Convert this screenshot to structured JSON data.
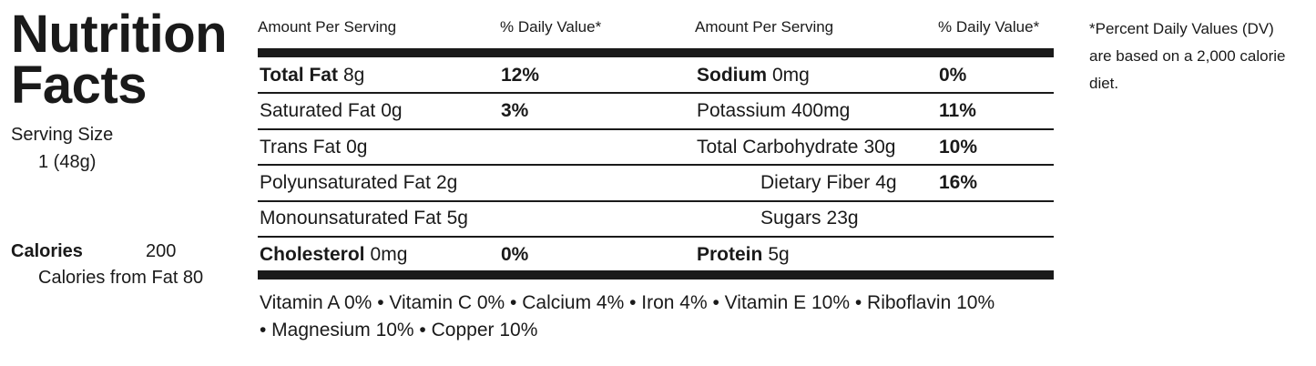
{
  "title": "Nutrition Facts",
  "serving": {
    "label": "Serving Size",
    "value": "1 (48g)"
  },
  "calories": {
    "label": "Calories",
    "value": "200",
    "from_fat": "Calories from Fat 80"
  },
  "table": {
    "headers": [
      "Amount Per Serving",
      "% Daily Value*",
      "Amount Per Serving",
      "% Daily Value*"
    ],
    "rows": [
      [
        {
          "name": "Total Fat",
          "amount": "8g",
          "dv": "12%"
        },
        {
          "name": "Sodium",
          "amount": "0mg",
          "dv": "0%"
        }
      ],
      [
        {
          "name": "Saturated Fat",
          "amount": "0g",
          "dv": "3%"
        },
        {
          "name": "Potassium",
          "amount": "400mg",
          "dv": "11%"
        }
      ],
      [
        {
          "name": "Trans Fat",
          "amount": "0g"
        },
        {
          "name": "Total Carbohydrate",
          "amount": "30g",
          "dv": "10%"
        }
      ],
      [
        {
          "name": "Polyunsaturated Fat",
          "amount": "2g"
        },
        {
          "name": "Dietary Fiber",
          "amount": "4g",
          "dv": "16%"
        }
      ],
      [
        {
          "name": "Monounsaturated Fat",
          "amount": "5g"
        },
        {
          "name": "Sugars",
          "amount": "23g"
        }
      ],
      [
        {
          "name": "Cholesterol",
          "amount": "0mg",
          "dv": "0%"
        },
        {
          "name": "Protein",
          "amount": "5g"
        }
      ]
    ]
  },
  "vitamins": [
    "Vitamin A 0% • Vitamin C 0% • Calcium 4% • Iron 4% • Vitamin E 10% • Riboflavin 10%",
    "• Magnesium 10% • Copper 10%"
  ],
  "footnote": [
    "*Percent Daily Values (DV)",
    "are based on a 2,000 calorie",
    "diet."
  ]
}
